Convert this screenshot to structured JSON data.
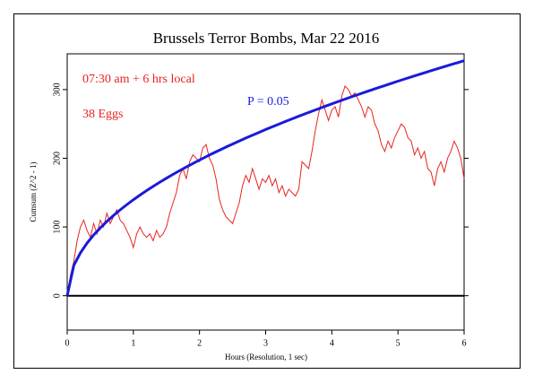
{
  "chart_data": {
    "type": "line",
    "title": "Brussels Terror Bombs, Mar 22 2016",
    "x_label": "Hours (Resolution, 1 sec)",
    "y_label": "Cumsum (Z^2 - 1)",
    "annotations": [
      "07:30 am + 6 hrs local",
      "38 Eggs"
    ],
    "xlim": [
      0,
      6
    ],
    "xticks": [
      0,
      1,
      2,
      3,
      4,
      5,
      6
    ],
    "ylim": [
      -50,
      352
    ],
    "yticks": [
      0,
      100,
      200,
      300
    ],
    "series": [
      {
        "name": "P = 0.05",
        "color": "#1a1adb",
        "x": [
          0,
          0.1,
          0.2,
          0.3,
          0.4,
          0.5,
          0.6,
          0.7,
          0.8,
          0.9,
          1,
          1.1,
          1.2,
          1.3,
          1.4,
          1.5,
          1.6,
          1.7,
          1.8,
          1.9,
          2,
          2.1,
          2.2,
          2.3,
          2.4,
          2.5,
          2.6,
          2.7,
          2.8,
          2.9,
          3,
          3.1,
          3.2,
          3.3,
          3.4,
          3.5,
          3.6,
          3.7,
          3.8,
          3.9,
          4,
          4.1,
          4.2,
          4.3,
          4.4,
          4.5,
          4.6,
          4.7,
          4.8,
          4.9,
          5,
          5.1,
          5.2,
          5.3,
          5.4,
          5.5,
          5.6,
          5.7,
          5.8,
          5.9,
          6
        ],
        "values": [
          0,
          44.1,
          62.4,
          76.5,
          88.3,
          98.7,
          108.1,
          116.8,
          124.9,
          132.4,
          139.6,
          146.4,
          152.9,
          159.2,
          165.2,
          171.0,
          176.6,
          182.0,
          187.3,
          192.4,
          197.4,
          202.3,
          207.1,
          211.7,
          216.3,
          220.7,
          225.1,
          229.4,
          233.6,
          237.7,
          241.8,
          245.8,
          249.7,
          253.6,
          257.4,
          261.2,
          264.9,
          268.5,
          272.1,
          275.7,
          279.2,
          282.7,
          286.1,
          289.5,
          292.8,
          296.1,
          299.4,
          302.6,
          305.8,
          309.0,
          312.2,
          315.3,
          318.3,
          321.4,
          324.4,
          327.4,
          330.4,
          333.3,
          336.2,
          339.1,
          341.9
        ]
      },
      {
        "name": "Cumsum",
        "color": "#e8231e",
        "x": [
          0,
          0.05,
          0.1,
          0.15,
          0.2,
          0.25,
          0.3,
          0.35,
          0.4,
          0.45,
          0.5,
          0.55,
          0.6,
          0.65,
          0.7,
          0.75,
          0.8,
          0.85,
          0.9,
          0.95,
          1,
          1.05,
          1.1,
          1.15,
          1.2,
          1.25,
          1.3,
          1.35,
          1.4,
          1.45,
          1.5,
          1.55,
          1.6,
          1.65,
          1.7,
          1.75,
          1.8,
          1.85,
          1.9,
          1.95,
          2,
          2.05,
          2.1,
          2.15,
          2.2,
          2.25,
          2.3,
          2.35,
          2.4,
          2.45,
          2.5,
          2.55,
          2.6,
          2.65,
          2.7,
          2.75,
          2.8,
          2.85,
          2.9,
          2.95,
          3,
          3.05,
          3.1,
          3.15,
          3.2,
          3.25,
          3.3,
          3.35,
          3.4,
          3.45,
          3.5,
          3.55,
          3.6,
          3.65,
          3.7,
          3.75,
          3.8,
          3.85,
          3.9,
          3.95,
          4,
          4.05,
          4.1,
          4.15,
          4.2,
          4.25,
          4.3,
          4.35,
          4.4,
          4.45,
          4.5,
          4.55,
          4.6,
          4.65,
          4.7,
          4.75,
          4.8,
          4.85,
          4.9,
          4.95,
          5,
          5.05,
          5.1,
          5.15,
          5.2,
          5.25,
          5.3,
          5.35,
          5.4,
          5.45,
          5.5,
          5.55,
          5.6,
          5.65,
          5.7,
          5.75,
          5.8,
          5.85,
          5.9,
          5.95,
          6
        ],
        "values": [
          0,
          30,
          50,
          80,
          100,
          110,
          95,
          85,
          105,
          90,
          110,
          100,
          120,
          105,
          115,
          125,
          110,
          105,
          95,
          85,
          70,
          90,
          100,
          90,
          85,
          90,
          80,
          95,
          85,
          90,
          100,
          120,
          135,
          150,
          175,
          185,
          170,
          195,
          205,
          200,
          195,
          215,
          220,
          200,
          190,
          170,
          140,
          125,
          115,
          110,
          105,
          120,
          135,
          160,
          175,
          165,
          185,
          170,
          155,
          170,
          165,
          175,
          160,
          170,
          150,
          160,
          145,
          155,
          150,
          145,
          155,
          195,
          190,
          185,
          210,
          240,
          265,
          285,
          270,
          255,
          270,
          275,
          260,
          290,
          305,
          300,
          290,
          295,
          285,
          275,
          260,
          275,
          270,
          250,
          240,
          220,
          210,
          225,
          215,
          230,
          240,
          250,
          245,
          230,
          225,
          205,
          215,
          200,
          210,
          185,
          180,
          160,
          185,
          195,
          180,
          200,
          210,
          225,
          215,
          200,
          170
        ]
      }
    ]
  }
}
